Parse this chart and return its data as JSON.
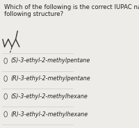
{
  "title_line1": "Which of the following is the correct IUPAC name of the",
  "title_line2": "following structure?",
  "options": [
    "(S)-3-ethyl-2-methylpentane",
    "(R)-3-ethyl-2-methylpentane",
    "(S)-3-ethyl-2-methylhexane",
    "(R)-3-ethyl-2-methylhexane"
  ],
  "bg_color": "#eeece8",
  "text_color": "#222222",
  "font_size": 6.2,
  "option_font_size": 5.8,
  "struct_color": "#333333",
  "line_color": "#cccccc",
  "circle_color": "#555555"
}
